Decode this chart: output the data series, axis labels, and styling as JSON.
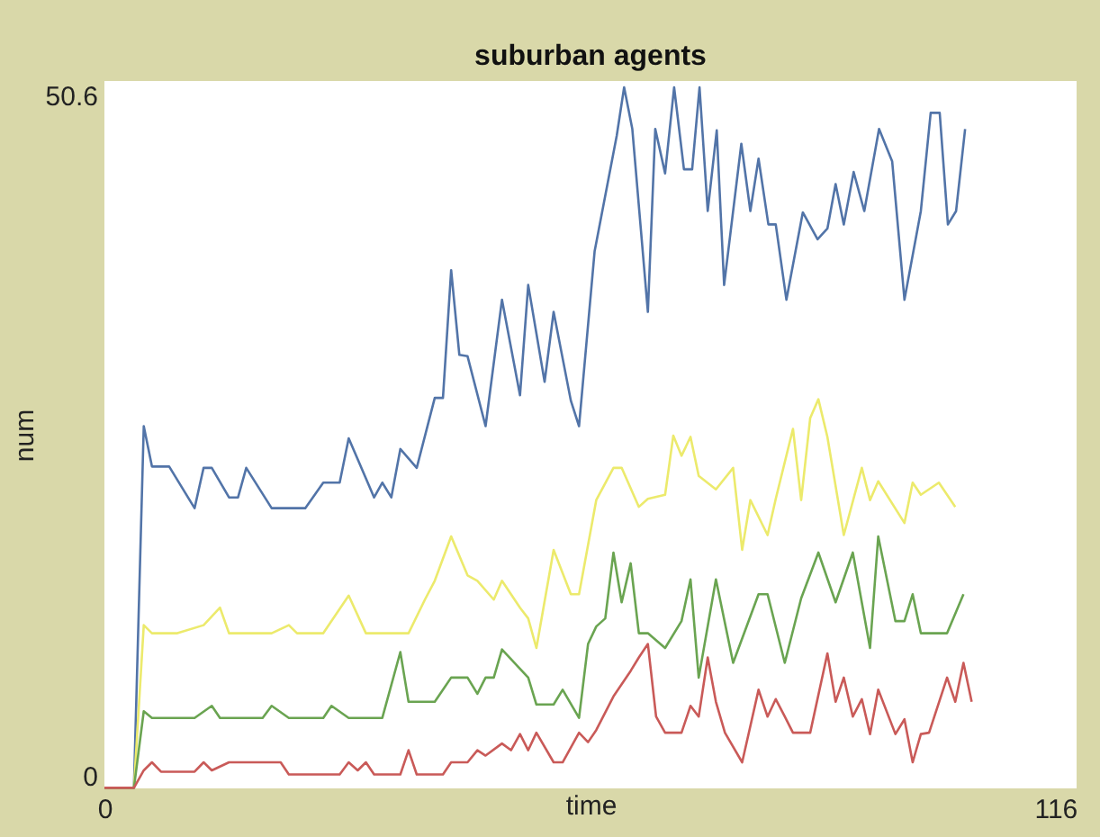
{
  "chart_data": {
    "type": "line",
    "title": "suburban agents",
    "xlabel": "time",
    "ylabel": "num",
    "xlim": [
      0,
      118.6
    ],
    "ylim": [
      -0.94,
      51.67
    ],
    "xticks": [
      0,
      116
    ],
    "yticks": [
      0,
      50.6
    ],
    "grid": false,
    "legend": false,
    "series": [
      {
        "color": "#5274a8",
        "x": [
          0,
          3.6,
          4.8,
          5.8,
          7.9,
          11.0,
          12.1,
          13.1,
          15.2,
          16.3,
          17.3,
          20.4,
          24.5,
          26.7,
          28.7,
          29.8,
          32.9,
          33.9,
          35.0,
          36.1,
          38.1,
          40.3,
          41.3,
          42.3,
          43.3,
          44.3,
          46.5,
          48.5,
          50.7,
          51.7,
          53.7,
          54.8,
          56.9,
          57.9,
          59.8,
          62.5,
          63.4,
          64.4,
          66.3,
          67.2,
          68.4,
          69.5,
          70.7,
          71.7,
          72.6,
          73.6,
          74.7,
          75.6,
          77.7,
          78.8,
          79.8,
          81.0,
          81.9,
          83.2,
          85.2,
          87.0,
          88.2,
          89.2,
          90.2,
          91.4,
          92.7,
          94.5,
          96.1,
          97.6,
          99.6,
          100.8,
          101.9,
          102.9,
          103.9,
          105.0
        ],
        "values": [
          -0.9,
          -0.9,
          26.0,
          23.0,
          23.0,
          19.9,
          22.9,
          22.9,
          20.7,
          20.7,
          22.9,
          19.9,
          19.9,
          21.8,
          21.8,
          25.1,
          20.7,
          21.8,
          20.7,
          24.3,
          22.9,
          28.1,
          28.1,
          37.6,
          31.3,
          31.2,
          26.0,
          35.4,
          28.3,
          36.5,
          29.3,
          34.5,
          27.9,
          26.0,
          39.0,
          47.6,
          51.2,
          48.1,
          34.5,
          48.1,
          44.8,
          51.2,
          45.1,
          45.1,
          51.2,
          42.0,
          48.0,
          36.5,
          47.0,
          42.0,
          45.9,
          41.0,
          41.0,
          35.4,
          41.9,
          39.9,
          40.7,
          44.0,
          41.0,
          44.9,
          42.0,
          48.1,
          45.7,
          35.4,
          42.0,
          49.3,
          49.3,
          41.0,
          42.0,
          48.1
        ]
      },
      {
        "color": "#ecea6c",
        "x": [
          0,
          3.6,
          4.8,
          5.8,
          8.9,
          12.1,
          14.1,
          15.2,
          20.4,
          22.5,
          23.5,
          26.7,
          29.8,
          31.9,
          37.1,
          39.1,
          40.3,
          42.3,
          44.3,
          45.5,
          47.5,
          48.5,
          50.7,
          51.7,
          52.7,
          54.8,
          56.9,
          57.9,
          60.0,
          62.1,
          63.1,
          65.2,
          66.3,
          68.4,
          69.4,
          70.4,
          71.5,
          72.5,
          74.6,
          76.7,
          77.8,
          78.8,
          80.9,
          81.9,
          84.0,
          85.0,
          86.1,
          87.1,
          88.2,
          90.2,
          92.4,
          93.4,
          94.4,
          97.6,
          98.6,
          99.6,
          101.8,
          102.8,
          103.8
        ],
        "values": [
          -0.9,
          -0.9,
          11.2,
          10.6,
          10.6,
          11.2,
          12.5,
          10.6,
          10.6,
          11.2,
          10.6,
          10.6,
          13.4,
          10.6,
          10.6,
          13.1,
          14.5,
          17.8,
          14.9,
          14.5,
          13.1,
          14.5,
          12.5,
          11.7,
          9.5,
          16.8,
          13.5,
          13.5,
          20.5,
          22.9,
          22.9,
          20.0,
          20.6,
          20.9,
          25.3,
          23.8,
          25.2,
          22.3,
          21.3,
          22.9,
          16.8,
          20.5,
          17.9,
          20.6,
          25.8,
          20.5,
          26.6,
          28.0,
          25.2,
          17.9,
          22.9,
          20.5,
          21.9,
          18.8,
          21.8,
          20.9,
          21.8,
          20.9,
          20.0
        ]
      },
      {
        "color": "#6aa451",
        "x": [
          0,
          3.6,
          4.8,
          5.8,
          11.0,
          13.1,
          14.1,
          19.3,
          20.4,
          22.5,
          26.7,
          27.7,
          29.8,
          33.9,
          36.1,
          37.1,
          40.3,
          42.3,
          44.3,
          45.5,
          46.5,
          47.5,
          48.5,
          51.7,
          52.7,
          54.8,
          55.9,
          57.9,
          59.0,
          60.0,
          61.1,
          62.1,
          63.1,
          64.2,
          65.2,
          66.3,
          68.4,
          70.4,
          71.5,
          72.5,
          74.6,
          76.7,
          79.8,
          80.9,
          83.0,
          85.0,
          87.1,
          89.2,
          91.3,
          93.4,
          94.4,
          96.5,
          97.6,
          98.6,
          99.6,
          102.8,
          104.8
        ],
        "values": [
          -0.9,
          -0.9,
          4.8,
          4.3,
          4.3,
          5.2,
          4.3,
          4.3,
          5.2,
          4.3,
          4.3,
          5.2,
          4.3,
          4.3,
          9.2,
          5.5,
          5.5,
          7.3,
          7.3,
          6.1,
          7.3,
          7.3,
          9.4,
          7.3,
          5.3,
          5.3,
          6.4,
          4.3,
          9.8,
          11.1,
          11.7,
          16.6,
          12.9,
          15.8,
          10.6,
          10.6,
          9.5,
          11.5,
          14.6,
          7.3,
          14.6,
          8.4,
          13.5,
          13.5,
          8.4,
          13.2,
          16.6,
          12.9,
          16.6,
          9.5,
          17.8,
          11.5,
          11.5,
          13.5,
          10.6,
          10.6,
          13.5
        ]
      },
      {
        "color": "#c95a58",
        "x": [
          0,
          3.6,
          4.8,
          5.8,
          6.9,
          11.0,
          12.1,
          13.1,
          15.2,
          21.5,
          22.5,
          28.7,
          29.8,
          30.9,
          31.9,
          32.9,
          36.1,
          37.1,
          38.1,
          41.3,
          42.3,
          44.3,
          45.5,
          46.5,
          48.5,
          49.6,
          50.7,
          51.7,
          52.7,
          54.8,
          55.9,
          57.9,
          59.0,
          60.0,
          62.1,
          64.2,
          65.2,
          66.3,
          67.3,
          68.4,
          70.4,
          71.5,
          72.5,
          73.6,
          74.6,
          75.7,
          77.8,
          78.8,
          79.8,
          80.9,
          81.9,
          83.0,
          84.0,
          86.1,
          88.2,
          89.2,
          90.2,
          91.3,
          92.4,
          93.4,
          94.4,
          96.5,
          97.6,
          98.6,
          99.6,
          100.6,
          102.8,
          103.8,
          104.8,
          105.8
        ],
        "values": [
          -0.9,
          -0.9,
          0.4,
          1.0,
          0.3,
          0.3,
          1.0,
          0.4,
          1.0,
          1.0,
          0.1,
          0.1,
          1.0,
          0.4,
          1.0,
          0.1,
          0.1,
          1.9,
          0.1,
          0.1,
          1.0,
          1.0,
          1.9,
          1.5,
          2.4,
          1.9,
          3.1,
          1.9,
          3.2,
          1.0,
          1.0,
          3.2,
          2.5,
          3.4,
          5.9,
          7.8,
          8.8,
          9.8,
          4.4,
          3.2,
          3.2,
          5.2,
          4.4,
          8.8,
          5.5,
          3.2,
          1.0,
          3.7,
          6.4,
          4.4,
          5.7,
          4.4,
          3.2,
          3.2,
          9.1,
          5.5,
          7.3,
          4.4,
          5.7,
          3.1,
          6.4,
          3.1,
          4.2,
          1.0,
          3.1,
          3.2,
          7.3,
          5.5,
          8.4,
          5.5
        ]
      }
    ]
  }
}
